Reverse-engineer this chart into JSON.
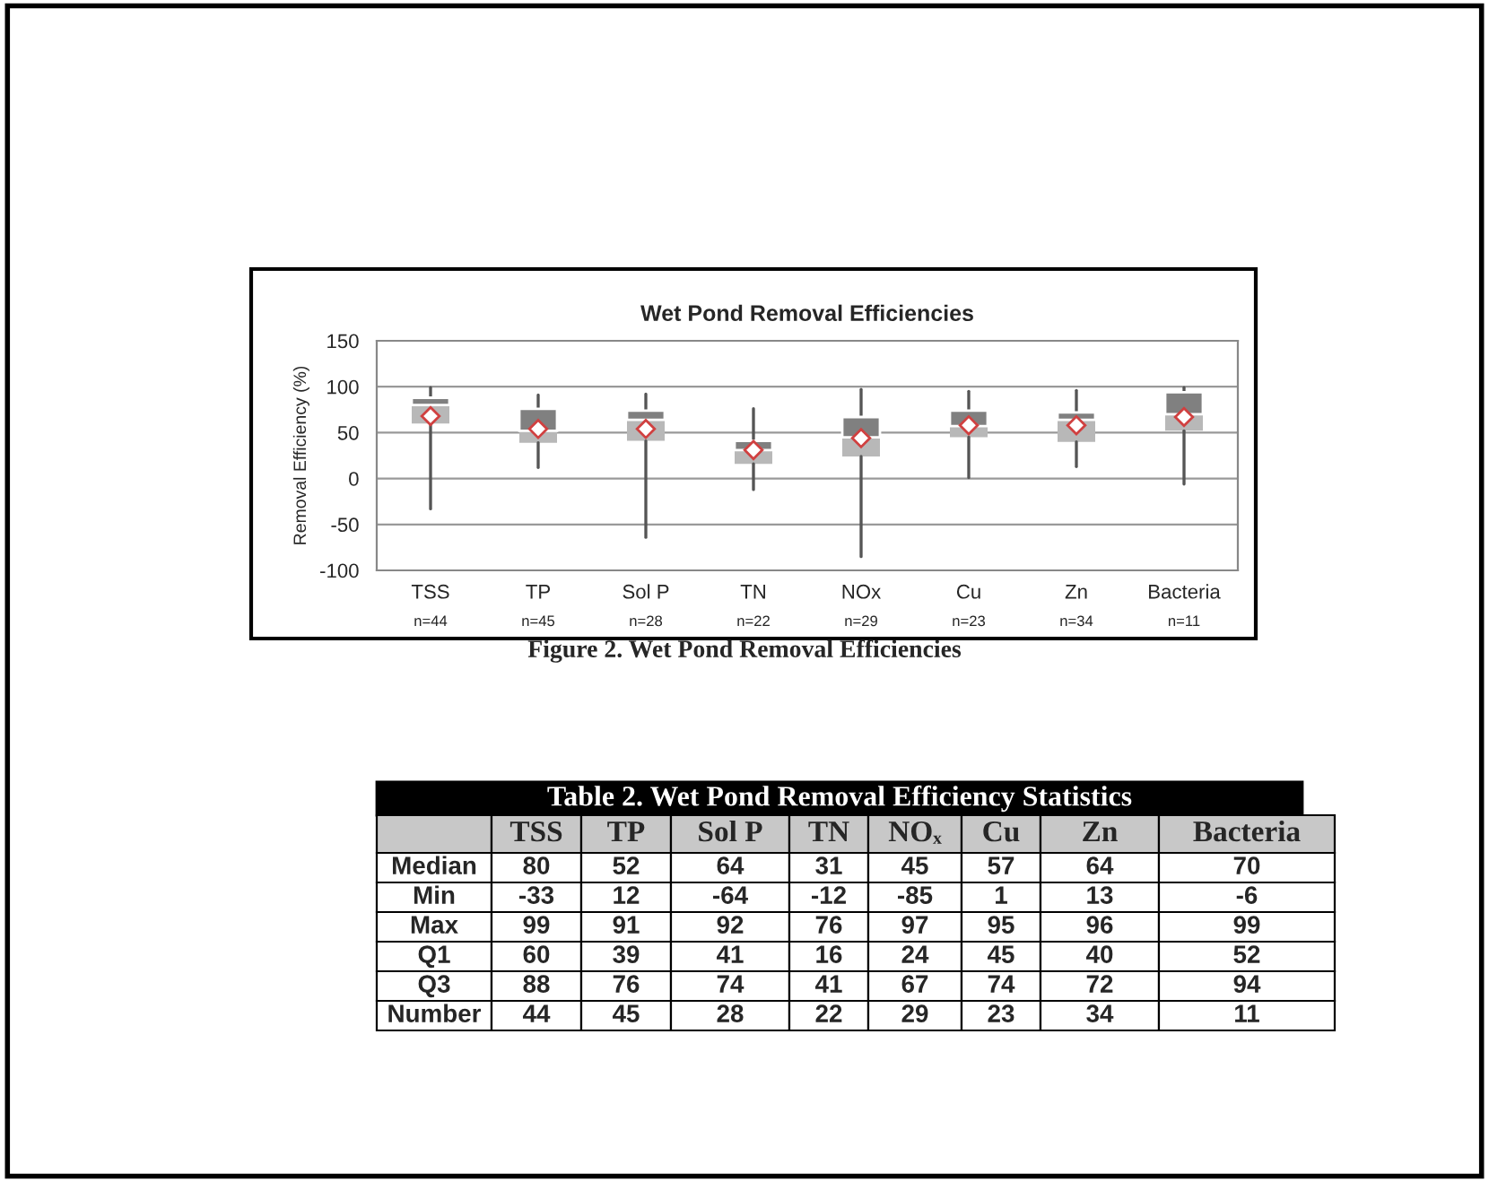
{
  "chart_data": {
    "type": "box",
    "title": "Wet Pond Removal Efficiencies",
    "ylabel": "Removal Efficiency (%)",
    "categories": [
      "TSS",
      "TP",
      "Sol P",
      "TN",
      "NOx",
      "Cu",
      "Zn",
      "Bacteria"
    ],
    "boxes": [
      {
        "low": -33,
        "q1": 60,
        "median": 80,
        "q3": 88,
        "high": 99,
        "mean": 68
      },
      {
        "low": 12,
        "q1": 39,
        "median": 52,
        "q3": 76,
        "high": 91,
        "mean": 54
      },
      {
        "low": -64,
        "q1": 41,
        "median": 64,
        "q3": 74,
        "high": 92,
        "mean": 54
      },
      {
        "low": -12,
        "q1": 16,
        "median": 31,
        "q3": 41,
        "high": 76,
        "mean": 31
      },
      {
        "low": -85,
        "q1": 24,
        "median": 45,
        "q3": 67,
        "high": 97,
        "mean": 44
      },
      {
        "low": 1,
        "q1": 45,
        "median": 57,
        "q3": 74,
        "high": 95,
        "mean": 58
      },
      {
        "low": 13,
        "q1": 40,
        "median": 64,
        "q3": 72,
        "high": 96,
        "mean": 58
      },
      {
        "low": -6,
        "q1": 52,
        "median": 70,
        "q3": 94,
        "high": 99,
        "mean": 67
      }
    ],
    "ylim": [
      -100,
      150
    ],
    "yticks": [
      -100,
      -50,
      0,
      50,
      100,
      150
    ],
    "grid": "y",
    "annotations": [
      "Figure 2. Wet Pond Removal Efficiencies",
      "Table 2. Wet Pond Removal Efficiency Statistics",
      "Median",
      "Min",
      "Max",
      "Q1",
      "Q3",
      "Number",
      "TSS",
      "TP",
      "Sol P",
      "TN",
      "NOₓ",
      "Cu",
      "Zn",
      "Bacteria",
      "80",
      "52",
      "64",
      "31",
      "45",
      "57",
      "64",
      "70",
      "-33",
      "12",
      "-64",
      "-12",
      "-85",
      "1",
      "13",
      "-6",
      "99",
      "91",
      "92",
      "76",
      "97",
      "95",
      "96",
      "99",
      "60",
      "39",
      "41",
      "16",
      "24",
      "45",
      "40",
      "52",
      "88",
      "76",
      "74",
      "41",
      "67",
      "74",
      "72",
      "94",
      "44",
      "45",
      "28",
      "22",
      "29",
      "23",
      "34",
      "11",
      "n=44",
      "n=45",
      "n=28",
      "n=22",
      "n=29",
      "n=23",
      "n=34",
      "n=11"
    ]
  }
}
